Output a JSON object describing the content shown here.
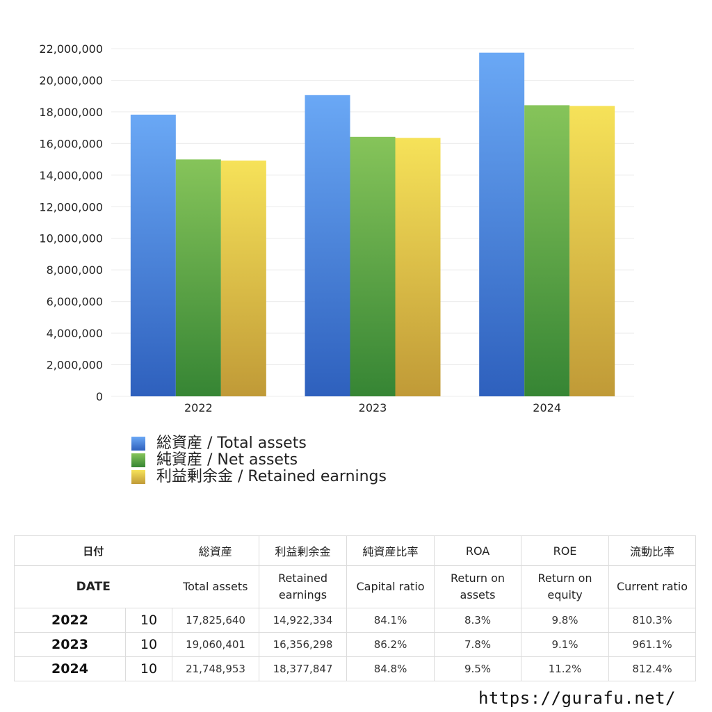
{
  "chart_data": {
    "type": "bar",
    "categories": [
      "2022",
      "2023",
      "2024"
    ],
    "series": [
      {
        "name": "総資産 / Total assets",
        "values": [
          17825640,
          19060401,
          21748953
        ],
        "color_top": "#6aa8f5",
        "color_bottom": "#2e60bd"
      },
      {
        "name": "純資産 / Net assets",
        "values": [
          14990000,
          16420000,
          18420000
        ],
        "color_top": "#86c45a",
        "color_bottom": "#368534"
      },
      {
        "name": "利益剰余金 / Retained earnings",
        "values": [
          14922334,
          16356298,
          18377847
        ],
        "color_top": "#f6e259",
        "color_bottom": "#c09a37"
      }
    ],
    "ylim": [
      0,
      22000000
    ],
    "yticks": [
      0,
      2000000,
      4000000,
      6000000,
      8000000,
      10000000,
      12000000,
      14000000,
      16000000,
      18000000,
      20000000,
      22000000
    ],
    "ytick_labels": [
      "0",
      "2,000,000",
      "4,000,000",
      "6,000,000",
      "8,000,000",
      "10,000,000",
      "12,000,000",
      "14,000,000",
      "16,000,000",
      "18,000,000",
      "20,000,000",
      "22,000,000"
    ],
    "grid": true,
    "legend_position": "bottom-left"
  },
  "table": {
    "headers_jp": [
      "日付",
      "総資産",
      "利益剰余金",
      "純資産比率",
      "ROA",
      "ROE",
      "流動比率"
    ],
    "headers_en": [
      "DATE",
      "Total assets",
      "Retained earnings",
      "Capital ratio",
      "Return on assets",
      "Return on equity",
      "Current ratio"
    ],
    "rows": [
      {
        "year": "2022",
        "month": "10",
        "total_assets": "17,825,640",
        "retained": "14,922,334",
        "capital_ratio": "84.1%",
        "roa": "8.3%",
        "roe": "9.8%",
        "current_ratio": "810.3%"
      },
      {
        "year": "2023",
        "month": "10",
        "total_assets": "19,060,401",
        "retained": "16,356,298",
        "capital_ratio": "86.2%",
        "roa": "7.8%",
        "roe": "9.1%",
        "current_ratio": "961.1%"
      },
      {
        "year": "2024",
        "month": "10",
        "total_assets": "21,748,953",
        "retained": "18,377,847",
        "capital_ratio": "84.8%",
        "roa": "9.5%",
        "roe": "11.2%",
        "current_ratio": "812.4%"
      }
    ]
  },
  "footer": {
    "url": "https://gurafu.net/"
  }
}
